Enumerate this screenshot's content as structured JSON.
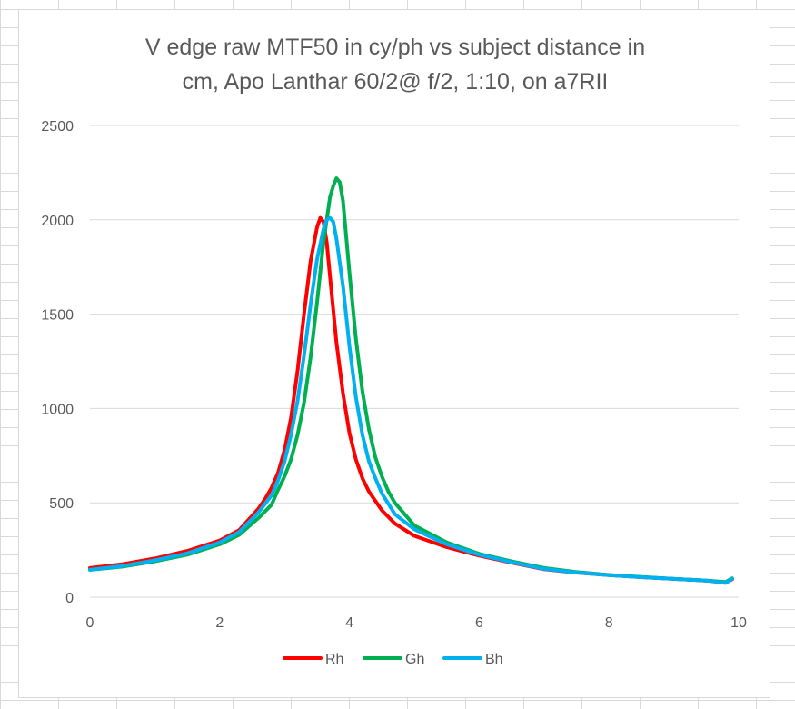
{
  "chart_data": {
    "type": "line",
    "title_lines": [
      "V edge raw MTF50 in cy/ph vs subject distance in",
      "cm, Apo Lanthar 60/2@ f/2, 1:10, on a7RII"
    ],
    "xlabel": "",
    "ylabel": "",
    "xlim": [
      0,
      10
    ],
    "ylim": [
      0,
      2500
    ],
    "x_ticks": [
      0,
      2,
      4,
      6,
      8,
      10
    ],
    "y_ticks": [
      0,
      500,
      1000,
      1500,
      2000,
      2500
    ],
    "grid": "horizontal",
    "legend_position": "bottom",
    "series": [
      {
        "name": "Rh",
        "color": "#ff0000",
        "points": [
          [
            0,
            155
          ],
          [
            0.5,
            175
          ],
          [
            1.0,
            205
          ],
          [
            1.5,
            245
          ],
          [
            2.0,
            300
          ],
          [
            2.3,
            355
          ],
          [
            2.6,
            470
          ],
          [
            2.7,
            520
          ],
          [
            2.8,
            580
          ],
          [
            2.9,
            660
          ],
          [
            3.0,
            780
          ],
          [
            3.1,
            950
          ],
          [
            3.2,
            1200
          ],
          [
            3.3,
            1500
          ],
          [
            3.4,
            1780
          ],
          [
            3.5,
            1960
          ],
          [
            3.55,
            2010
          ],
          [
            3.6,
            1990
          ],
          [
            3.65,
            1880
          ],
          [
            3.7,
            1700
          ],
          [
            3.8,
            1350
          ],
          [
            3.9,
            1080
          ],
          [
            4.0,
            870
          ],
          [
            4.1,
            730
          ],
          [
            4.2,
            630
          ],
          [
            4.3,
            560
          ],
          [
            4.5,
            460
          ],
          [
            4.7,
            390
          ],
          [
            5.0,
            325
          ],
          [
            5.5,
            265
          ],
          [
            6.0,
            220
          ],
          [
            6.5,
            183
          ],
          [
            7.0,
            148
          ],
          [
            7.5,
            130
          ],
          [
            8.0,
            117
          ],
          [
            8.5,
            106
          ],
          [
            9.0,
            97
          ],
          [
            9.5,
            88
          ],
          [
            9.8,
            78
          ],
          [
            9.9,
            95
          ]
        ]
      },
      {
        "name": "Gh",
        "color": "#00b050",
        "points": [
          [
            0,
            145
          ],
          [
            0.5,
            162
          ],
          [
            1.0,
            190
          ],
          [
            1.5,
            225
          ],
          [
            2.0,
            280
          ],
          [
            2.3,
            330
          ],
          [
            2.6,
            420
          ],
          [
            2.8,
            490
          ],
          [
            2.9,
            570
          ],
          [
            3.0,
            640
          ],
          [
            3.1,
            730
          ],
          [
            3.2,
            860
          ],
          [
            3.3,
            1030
          ],
          [
            3.4,
            1270
          ],
          [
            3.5,
            1560
          ],
          [
            3.6,
            1880
          ],
          [
            3.7,
            2120
          ],
          [
            3.75,
            2180
          ],
          [
            3.8,
            2220
          ],
          [
            3.85,
            2200
          ],
          [
            3.9,
            2100
          ],
          [
            4.0,
            1720
          ],
          [
            4.1,
            1370
          ],
          [
            4.2,
            1090
          ],
          [
            4.3,
            890
          ],
          [
            4.4,
            740
          ],
          [
            4.5,
            640
          ],
          [
            4.6,
            560
          ],
          [
            4.7,
            500
          ],
          [
            5.0,
            380
          ],
          [
            5.5,
            290
          ],
          [
            6.0,
            230
          ],
          [
            6.5,
            190
          ],
          [
            7.0,
            155
          ],
          [
            7.5,
            133
          ],
          [
            8.0,
            118
          ],
          [
            8.5,
            107
          ],
          [
            9.0,
            97
          ],
          [
            9.5,
            88
          ],
          [
            9.8,
            80
          ],
          [
            9.9,
            100
          ]
        ]
      },
      {
        "name": "Bh",
        "color": "#00b0f0",
        "points": [
          [
            0,
            145
          ],
          [
            0.5,
            165
          ],
          [
            1.0,
            195
          ],
          [
            1.5,
            232
          ],
          [
            2.0,
            290
          ],
          [
            2.3,
            345
          ],
          [
            2.6,
            450
          ],
          [
            2.8,
            540
          ],
          [
            2.9,
            620
          ],
          [
            3.0,
            720
          ],
          [
            3.1,
            860
          ],
          [
            3.2,
            1040
          ],
          [
            3.3,
            1280
          ],
          [
            3.4,
            1550
          ],
          [
            3.5,
            1790
          ],
          [
            3.6,
            1950
          ],
          [
            3.65,
            2000
          ],
          [
            3.7,
            2010
          ],
          [
            3.75,
            1990
          ],
          [
            3.8,
            1900
          ],
          [
            3.9,
            1650
          ],
          [
            4.0,
            1330
          ],
          [
            4.1,
            1060
          ],
          [
            4.2,
            860
          ],
          [
            4.3,
            720
          ],
          [
            4.4,
            630
          ],
          [
            4.5,
            550
          ],
          [
            4.7,
            440
          ],
          [
            5.0,
            360
          ],
          [
            5.5,
            280
          ],
          [
            6.0,
            225
          ],
          [
            6.5,
            185
          ],
          [
            7.0,
            150
          ],
          [
            7.5,
            130
          ],
          [
            8.0,
            117
          ],
          [
            8.5,
            106
          ],
          [
            9.0,
            97
          ],
          [
            9.5,
            88
          ],
          [
            9.8,
            75
          ],
          [
            9.9,
            98
          ]
        ]
      }
    ]
  }
}
